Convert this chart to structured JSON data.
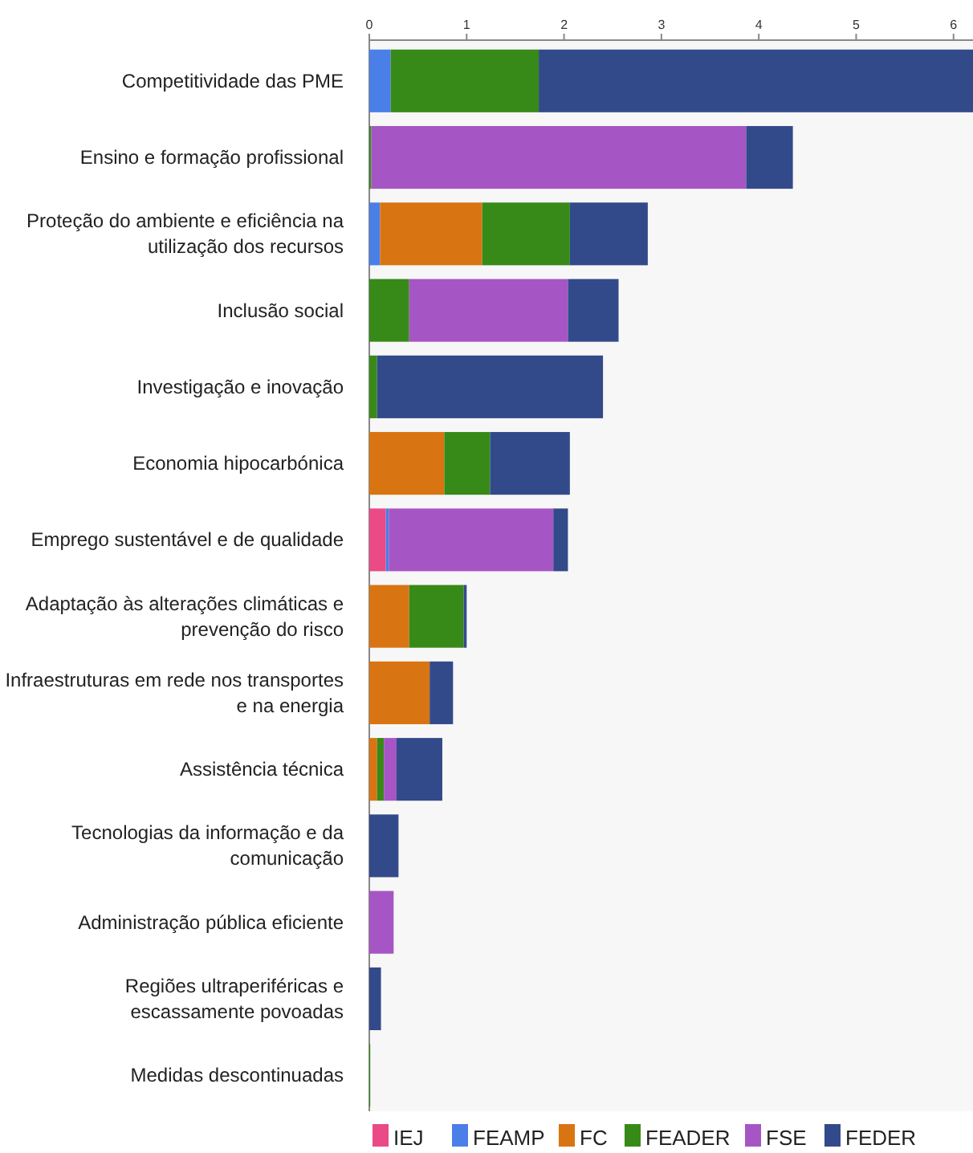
{
  "chart_data": {
    "type": "bar",
    "orientation": "horizontal",
    "stacked": true,
    "legend": "bottom",
    "grid": false,
    "categories": [
      "Competitividade das PME",
      "Ensino e formação profissional",
      "Proteção do ambiente e eficiência na utilização dos recursos",
      "Inclusão social",
      "Investigação e inovação",
      "Economia hipocarbónica",
      "Emprego sustentável e de qualidade",
      "Adaptação às alterações climáticas e prevenção do risco",
      "Infraestruturas em rede nos transportes e na energia",
      "Assistência técnica",
      "Tecnologias da informação e da comunicação",
      "Administração pública eficiente",
      "Regiões ultraperiféricas e escassamente povoadas",
      "Medidas descontinuadas"
    ],
    "xlim": [
      0,
      6.2
    ],
    "xticks": [
      0,
      1,
      2,
      3,
      4,
      5,
      6
    ],
    "series": [
      {
        "name": "IEJ",
        "color": "#ea4a86",
        "values": [
          0,
          0,
          0,
          0,
          0,
          0,
          0.17,
          0,
          0,
          0,
          0,
          0,
          0,
          0
        ]
      },
      {
        "name": "FEAMP",
        "color": "#4a7fe8",
        "values": [
          0.22,
          0,
          0.11,
          0,
          0,
          0,
          0.03,
          0,
          0,
          0,
          0,
          0,
          0,
          0
        ]
      },
      {
        "name": "FC",
        "color": "#d97412",
        "values": [
          0,
          0,
          1.05,
          0,
          0,
          0.77,
          0,
          0.41,
          0.62,
          0.08,
          0,
          0,
          0,
          0
        ]
      },
      {
        "name": "FEADER",
        "color": "#378a18",
        "values": [
          1.52,
          0.02,
          0.9,
          0.41,
          0.08,
          0.47,
          0,
          0.56,
          0,
          0.07,
          0,
          0,
          0,
          0.01
        ]
      },
      {
        "name": "FSE",
        "color": "#a656c4",
        "values": [
          0,
          3.85,
          0,
          1.63,
          0,
          0,
          1.69,
          0,
          0,
          0.13,
          0,
          0.25,
          0,
          0
        ]
      },
      {
        "name": "FEDER",
        "color": "#334a8a",
        "values": [
          4.46,
          0.48,
          0.8,
          0.52,
          2.32,
          0.82,
          0.15,
          0.03,
          0.24,
          0.47,
          0.3,
          0,
          0.12,
          0
        ]
      }
    ]
  }
}
